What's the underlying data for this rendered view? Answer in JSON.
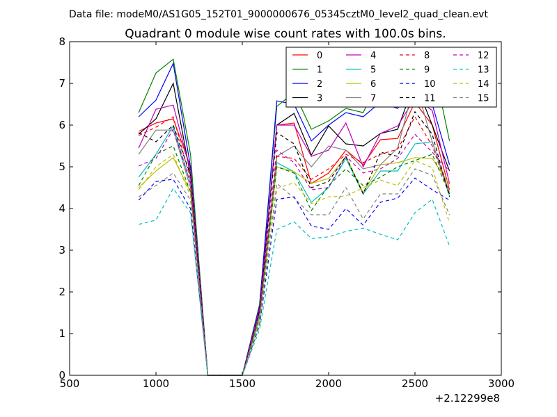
{
  "header": {
    "datafile": "Data file: modeM0/AS1G05_152T01_9000000676_05345cztM0_level2_quad_clean.evt"
  },
  "chart_data": {
    "type": "line",
    "title": "Quadrant 0 module wise count rates with 100.0s bins.",
    "xlabel": "",
    "ylabel": "",
    "x_offset_label": "+2.12299e8",
    "xlim": [
      500,
      3000
    ],
    "ylim": [
      0,
      8
    ],
    "xticks": [
      "500",
      "1000",
      "1500",
      "2000",
      "2500",
      "3000"
    ],
    "yticks": [
      "0",
      "1",
      "2",
      "3",
      "4",
      "5",
      "6",
      "7",
      "8"
    ],
    "grid": false,
    "legend_position": "top-right",
    "x": [
      900,
      1000,
      1100,
      1200,
      1300,
      1400,
      1500,
      1600,
      1700,
      1800,
      1900,
      2000,
      2100,
      2200,
      2300,
      2400,
      2500,
      2600,
      2700
    ],
    "series": [
      {
        "name": "0",
        "color": "#ff0000",
        "dash": false,
        "values": [
          5.85,
          6.05,
          6.15,
          5.0,
          0,
          0,
          0,
          1.5,
          6.0,
          6.05,
          4.6,
          4.85,
          5.4,
          5.05,
          5.65,
          5.68,
          6.55,
          6.0,
          4.45
        ]
      },
      {
        "name": "1",
        "color": "#008000",
        "dash": false,
        "values": [
          6.3,
          7.25,
          7.58,
          5.3,
          0,
          0,
          0,
          1.7,
          6.45,
          6.78,
          5.9,
          6.1,
          6.4,
          6.3,
          7.15,
          6.9,
          7.85,
          7.6,
          5.62
        ]
      },
      {
        "name": "2",
        "color": "#0000ff",
        "dash": false,
        "values": [
          6.2,
          6.6,
          7.48,
          5.0,
          0,
          0,
          0,
          1.65,
          6.58,
          6.5,
          5.62,
          6.0,
          6.3,
          6.2,
          6.55,
          6.4,
          7.05,
          6.5,
          5.05
        ]
      },
      {
        "name": "3",
        "color": "#000000",
        "dash": false,
        "values": [
          5.78,
          6.15,
          7.0,
          4.8,
          0,
          0,
          0,
          1.55,
          6.0,
          6.28,
          5.28,
          5.98,
          5.55,
          5.5,
          5.8,
          5.9,
          7.05,
          6.0,
          4.9
        ]
      },
      {
        "name": "4",
        "color": "#bf00bf",
        "dash": false,
        "values": [
          5.45,
          6.38,
          6.48,
          4.9,
          0,
          0,
          0,
          1.6,
          6.0,
          6.0,
          5.25,
          5.4,
          6.05,
          5.0,
          5.8,
          5.98,
          6.65,
          6.35,
          4.6
        ]
      },
      {
        "name": "5",
        "color": "#00bfbf",
        "dash": false,
        "values": [
          4.75,
          5.3,
          5.98,
          4.6,
          0,
          0,
          0,
          1.4,
          5.1,
          4.88,
          4.15,
          4.5,
          5.2,
          4.35,
          4.9,
          4.9,
          5.55,
          5.6,
          4.3
        ]
      },
      {
        "name": "6",
        "color": "#bfbf00",
        "dash": false,
        "values": [
          4.5,
          4.9,
          5.22,
          4.4,
          0,
          0,
          0,
          1.3,
          5.0,
          4.88,
          4.6,
          4.72,
          5.25,
          4.38,
          5.05,
          5.1,
          5.22,
          5.2,
          4.58
        ]
      },
      {
        "name": "7",
        "color": "#808080",
        "dash": false,
        "values": [
          5.3,
          5.88,
          5.88,
          4.5,
          0,
          0,
          0,
          1.5,
          5.25,
          5.5,
          5.0,
          5.5,
          5.4,
          4.95,
          5.05,
          5.45,
          7.05,
          5.6,
          4.38
        ]
      },
      {
        "name": "8",
        "color": "#ff0000",
        "dash": true,
        "values": [
          5.75,
          5.95,
          6.2,
          4.7,
          0,
          0,
          0,
          1.5,
          5.25,
          5.2,
          4.7,
          4.95,
          5.3,
          5.1,
          5.3,
          5.42,
          6.2,
          5.5,
          4.35
        ]
      },
      {
        "name": "9",
        "color": "#008000",
        "dash": true,
        "values": [
          4.55,
          5.3,
          5.5,
          4.4,
          0,
          0,
          0,
          1.4,
          5.0,
          4.85,
          3.95,
          4.55,
          4.95,
          4.55,
          4.75,
          5.0,
          5.15,
          5.3,
          4.35
        ]
      },
      {
        "name": "10",
        "color": "#0000ff",
        "dash": true,
        "values": [
          4.2,
          4.65,
          4.7,
          4.0,
          0,
          0,
          0,
          1.2,
          4.22,
          4.28,
          3.58,
          3.5,
          4.0,
          3.6,
          4.15,
          4.25,
          4.73,
          4.45,
          4.2
        ]
      },
      {
        "name": "11",
        "color": "#000000",
        "dash": true,
        "values": [
          5.82,
          5.6,
          6.0,
          4.8,
          0,
          0,
          0,
          1.55,
          5.82,
          5.55,
          4.5,
          4.65,
          5.25,
          4.35,
          5.35,
          5.25,
          6.32,
          5.78,
          4.28
        ]
      },
      {
        "name": "12",
        "color": "#bf00bf",
        "dash": true,
        "values": [
          5.02,
          5.2,
          5.9,
          4.6,
          0,
          0,
          0,
          1.5,
          5.4,
          5.1,
          4.45,
          4.5,
          5.25,
          4.85,
          4.95,
          5.2,
          5.78,
          5.35,
          4.9
        ]
      },
      {
        "name": "13",
        "color": "#00bfbf",
        "dash": true,
        "values": [
          3.62,
          3.72,
          4.48,
          3.9,
          0,
          0,
          0,
          1.1,
          3.5,
          3.68,
          3.28,
          3.32,
          3.45,
          3.53,
          3.38,
          3.25,
          3.9,
          4.22,
          3.1
        ]
      },
      {
        "name": "14",
        "color": "#bfbf00",
        "dash": true,
        "values": [
          4.45,
          5.0,
          5.3,
          4.3,
          0,
          0,
          0,
          1.3,
          4.48,
          4.62,
          4.12,
          4.28,
          4.3,
          4.5,
          4.68,
          4.55,
          5.15,
          4.98,
          3.65
        ]
      },
      {
        "name": "15",
        "color": "#808080",
        "dash": true,
        "values": [
          4.28,
          4.55,
          4.85,
          4.2,
          0,
          0,
          0,
          1.25,
          4.6,
          4.25,
          3.85,
          3.85,
          4.5,
          3.75,
          4.35,
          4.35,
          4.95,
          4.8,
          3.85
        ]
      }
    ]
  }
}
